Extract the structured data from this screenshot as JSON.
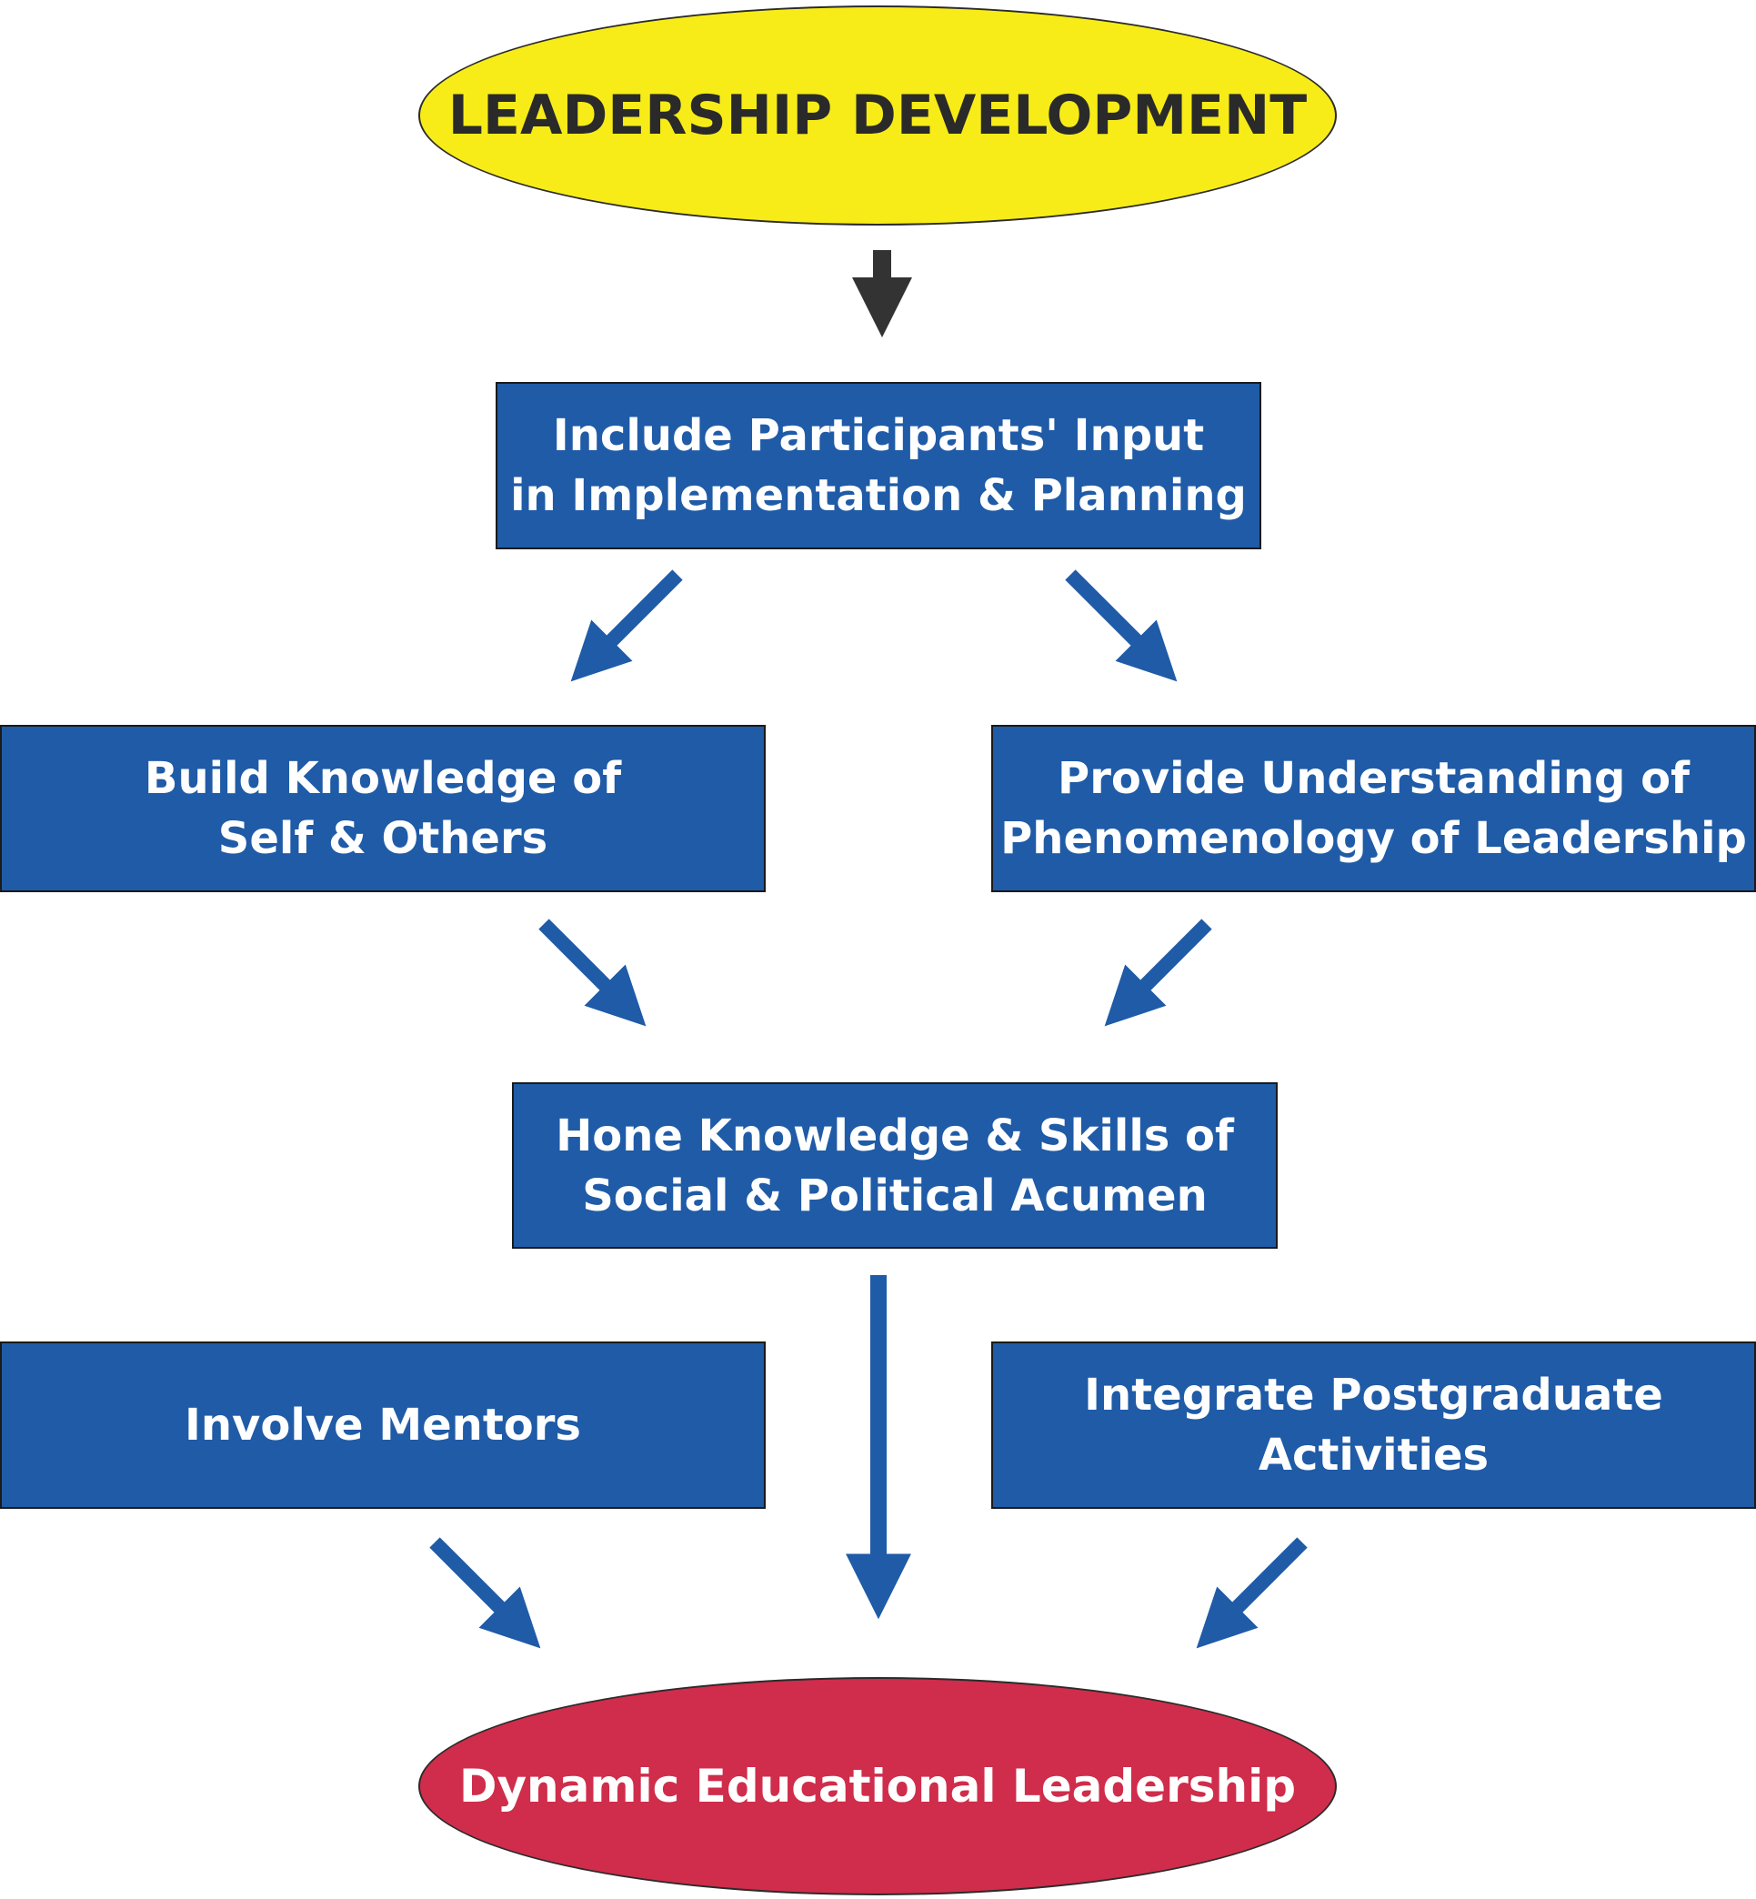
{
  "diagram": {
    "start": {
      "label": "LEADERSHIP DEVELOPMENT",
      "color": "#f7ec17"
    },
    "nodes": {
      "participants": "Include Participants' Input\nin Implementation & Planning",
      "self_others": "Build Knowledge of\nSelf & Others",
      "phenomenology": "Provide Understanding of\nPhenomenology of Leadership",
      "hone": "Hone Knowledge & Skills of\nSocial & Political Acumen",
      "mentors": "Involve Mentors",
      "postgraduate": "Integrate Postgraduate\nActivities"
    },
    "end": {
      "label": "Dynamic Educational Leadership",
      "color": "#cf2d4b"
    },
    "box_color": "#1f5ba7",
    "arrow_color": "#1f5ba7",
    "start_arrow_color": "#333333"
  }
}
